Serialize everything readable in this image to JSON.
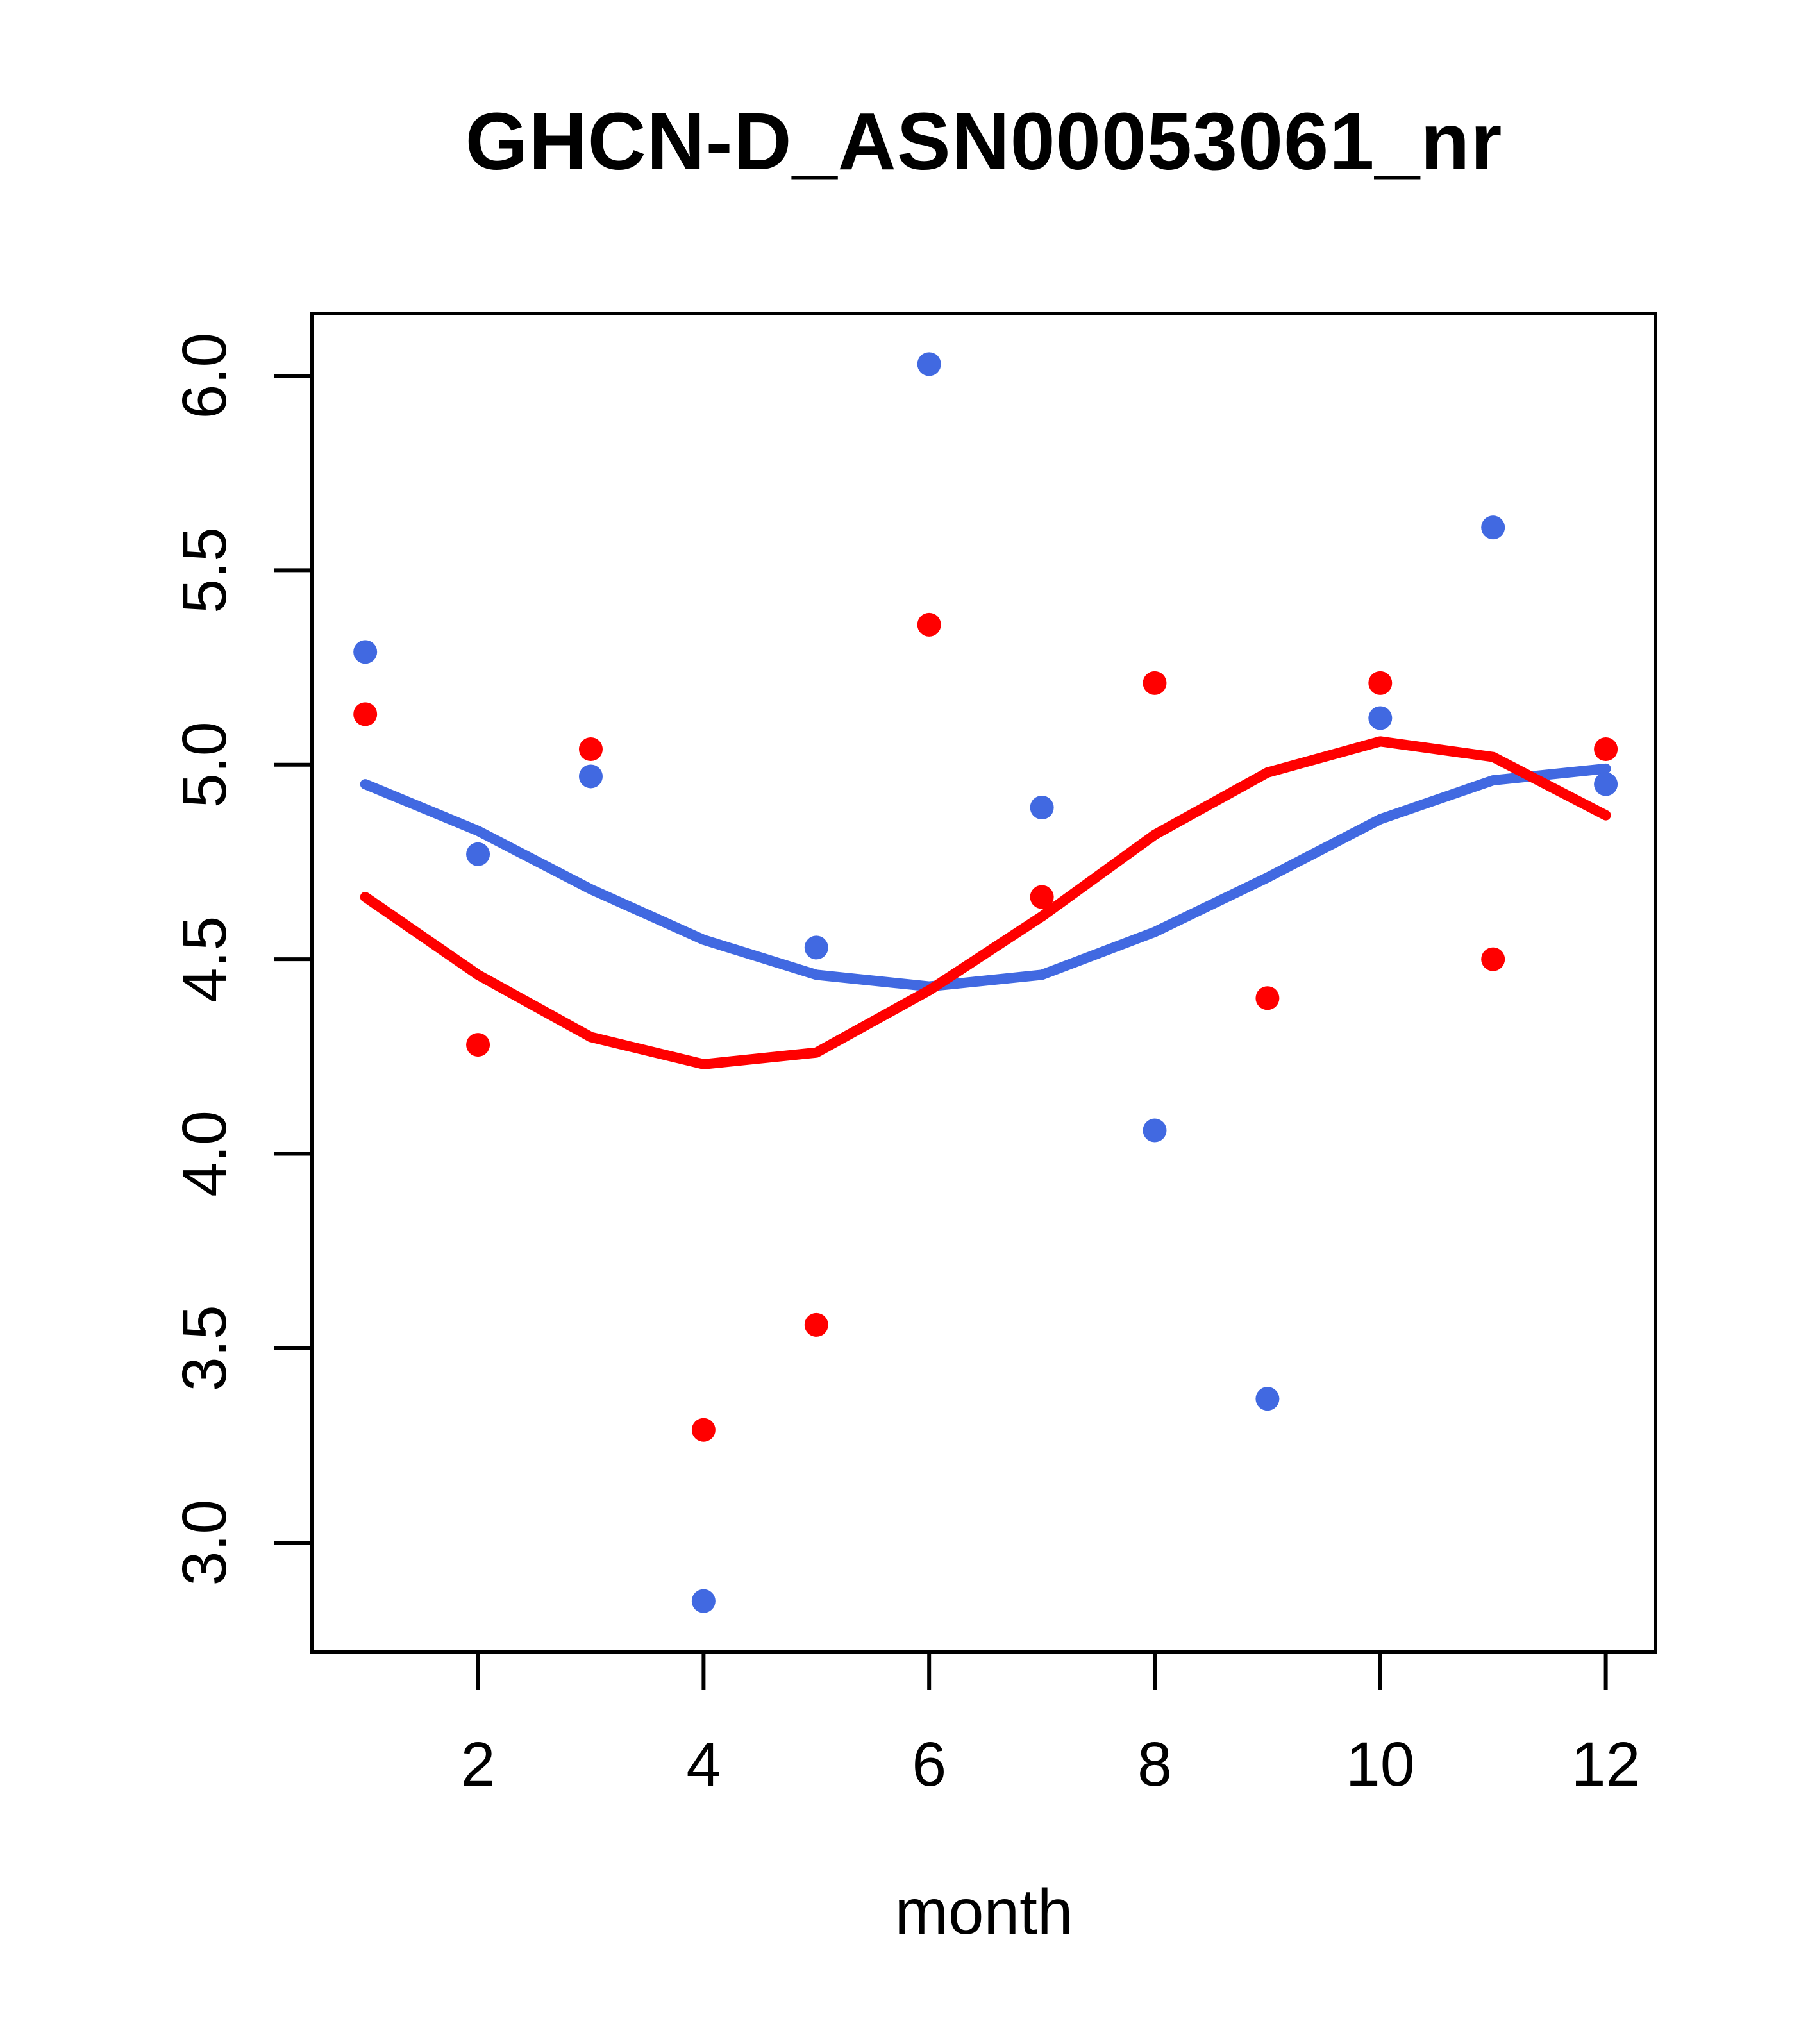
{
  "title": "GHCN-D_ASN00053061_nr",
  "chart_data": {
    "type": "scatter",
    "title": "GHCN-D_ASN00053061_nr",
    "xlabel": "month",
    "ylabel": "",
    "x": [
      1,
      2,
      3,
      4,
      5,
      6,
      7,
      8,
      9,
      10,
      11,
      12
    ],
    "xticks": [
      2,
      4,
      6,
      8,
      10,
      12
    ],
    "yticks": [
      "3.0",
      "3.5",
      "4.0",
      "4.5",
      "5.0",
      "5.5",
      "6.0"
    ],
    "xlim": [
      0.53,
      12.44
    ],
    "ylim": [
      2.72,
      6.16
    ],
    "grid": false,
    "legend": "none",
    "series": [
      {
        "name": "blue-points",
        "type": "points",
        "color": "#4169E1",
        "values": [
          5.29,
          4.77,
          4.97,
          2.85,
          4.53,
          6.03,
          4.89,
          4.06,
          3.37,
          5.12,
          5.61,
          4.95
        ]
      },
      {
        "name": "red-points",
        "type": "points",
        "color": "#FF0000",
        "values": [
          5.13,
          4.28,
          5.04,
          3.29,
          3.56,
          5.36,
          4.66,
          5.21,
          4.4,
          5.21,
          4.5,
          5.04
        ]
      },
      {
        "name": "blue-smooth-line",
        "type": "line",
        "color": "#4169E1",
        "values": [
          4.95,
          4.83,
          4.68,
          4.55,
          4.46,
          4.43,
          4.46,
          4.57,
          4.71,
          4.86,
          4.96,
          4.99
        ]
      },
      {
        "name": "red-smooth-line",
        "type": "line",
        "color": "#FF0000",
        "values": [
          4.66,
          4.46,
          4.3,
          4.23,
          4.26,
          4.42,
          4.61,
          4.82,
          4.98,
          5.06,
          5.02,
          4.87
        ]
      }
    ],
    "axis_color": "#000000"
  }
}
